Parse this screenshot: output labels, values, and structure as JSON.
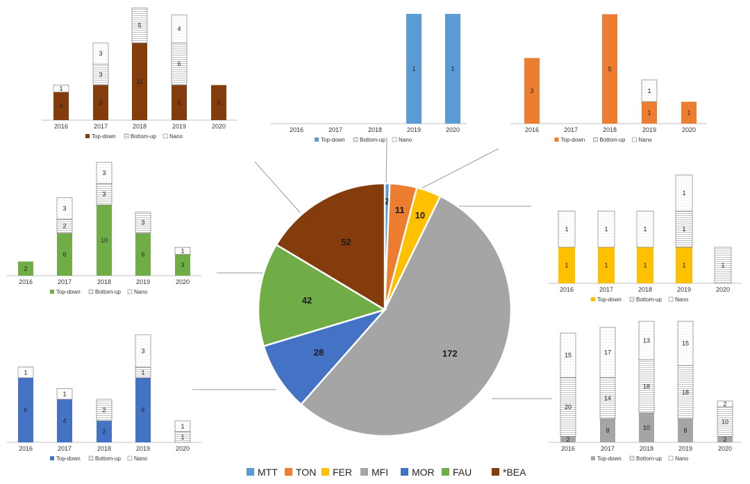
{
  "chart_data": [
    {
      "type": "pie",
      "categories": [
        "MTT",
        "TON",
        "FER",
        "MFI",
        "MOR",
        "FAU",
        "*BEA"
      ],
      "values": [
        2,
        11,
        10,
        172,
        28,
        42,
        52
      ],
      "colors": [
        "#5b9bd5",
        "#ed7d31",
        "#ffc000",
        "#a5a5a5",
        "#4472c4",
        "#70ad47",
        "#843c0c"
      ]
    },
    {
      "type": "bar",
      "stacked": true,
      "name": "MTT",
      "categories": [
        "2016",
        "2017",
        "2018",
        "2019",
        "2020"
      ],
      "series": [
        {
          "name": "Top-down",
          "values": [
            0,
            0,
            0,
            1,
            1
          ],
          "labels": [
            "",
            "",
            "",
            "1",
            "1"
          ]
        },
        {
          "name": "Bottom-up",
          "values": [
            0,
            0,
            0,
            0,
            0
          ],
          "labels": [
            "",
            "",
            "",
            "",
            ""
          ]
        },
        {
          "name": "Nano",
          "values": [
            0,
            0,
            0,
            0,
            0
          ],
          "labels": [
            "",
            "",
            "",
            "",
            ""
          ]
        }
      ],
      "color": "#5b9bd5"
    },
    {
      "type": "bar",
      "stacked": true,
      "name": "TON",
      "categories": [
        "2016",
        "2017",
        "2018",
        "2019",
        "2020"
      ],
      "series": [
        {
          "name": "Top-down",
          "values": [
            3,
            0,
            5,
            1,
            1
          ],
          "labels": [
            "3",
            "",
            "5",
            "1",
            "1"
          ]
        },
        {
          "name": "Bottom-up",
          "values": [
            0,
            0,
            0,
            0,
            0
          ],
          "labels": [
            "",
            "",
            "",
            "",
            ""
          ]
        },
        {
          "name": "Nano",
          "values": [
            0,
            0,
            0,
            1,
            0
          ],
          "labels": [
            "",
            "",
            "",
            "1",
            ""
          ]
        }
      ],
      "color": "#ed7d31"
    },
    {
      "type": "bar",
      "stacked": true,
      "name": "FER",
      "categories": [
        "2016",
        "2017",
        "2018",
        "2019",
        "2020"
      ],
      "series": [
        {
          "name": "Top-down",
          "values": [
            1,
            1,
            1,
            1,
            0
          ],
          "labels": [
            "1",
            "1",
            "1",
            "1",
            ""
          ]
        },
        {
          "name": "Bottom-up",
          "values": [
            0,
            0,
            0,
            1,
            1
          ],
          "labels": [
            "",
            "",
            "",
            "1",
            "1"
          ]
        },
        {
          "name": "Nano",
          "values": [
            1,
            1,
            1,
            1,
            0
          ],
          "labels": [
            "1",
            "1",
            "1",
            "1",
            ""
          ]
        }
      ],
      "color": "#ffc000"
    },
    {
      "type": "bar",
      "stacked": true,
      "name": "MFI",
      "categories": [
        "2016",
        "2017",
        "2018",
        "2019",
        "2020"
      ],
      "series": [
        {
          "name": "Top-down",
          "values": [
            2,
            8,
            10,
            8,
            2
          ],
          "labels": [
            "2",
            "8",
            "10",
            "8",
            "2"
          ]
        },
        {
          "name": "Bottom-up",
          "values": [
            20,
            14,
            18,
            18,
            10
          ],
          "labels": [
            "20",
            "14",
            "18",
            "18",
            "10"
          ]
        },
        {
          "name": "Nano",
          "values": [
            15,
            17,
            13,
            15,
            2
          ],
          "labels": [
            "15",
            "17",
            "13",
            "15",
            "2"
          ]
        }
      ],
      "color": "#a5a5a5"
    },
    {
      "type": "bar",
      "stacked": true,
      "name": "MOR",
      "categories": [
        "2016",
        "2017",
        "2018",
        "2019",
        "2020"
      ],
      "series": [
        {
          "name": "Top-down",
          "values": [
            6,
            4,
            2,
            6,
            0
          ],
          "labels": [
            "6",
            "4",
            "2",
            "6",
            ""
          ]
        },
        {
          "name": "Bottom-up",
          "values": [
            0,
            0,
            2,
            1,
            1
          ],
          "labels": [
            "",
            "",
            "2",
            "1",
            "1"
          ]
        },
        {
          "name": "Nano",
          "values": [
            1,
            1,
            0,
            3,
            1
          ],
          "labels": [
            "1",
            "1",
            "",
            "3",
            "1"
          ]
        }
      ],
      "color": "#4472c4"
    },
    {
      "type": "bar",
      "stacked": true,
      "name": "FAU",
      "categories": [
        "2016",
        "2017",
        "2018",
        "2019",
        "2020"
      ],
      "series": [
        {
          "name": "Top-down",
          "values": [
            2,
            6,
            10,
            6,
            3
          ],
          "labels": [
            "2",
            "6",
            "10",
            "6",
            "3"
          ]
        },
        {
          "name": "Bottom-up",
          "values": [
            0,
            2,
            3,
            3,
            0
          ],
          "labels": [
            "",
            "2",
            "3",
            "3",
            ""
          ]
        },
        {
          "name": "Nano",
          "values": [
            0,
            3,
            3,
            0,
            1
          ],
          "labels": [
            "",
            "3",
            "3",
            "",
            "1"
          ]
        }
      ],
      "color": "#70ad47"
    },
    {
      "type": "bar",
      "stacked": true,
      "name": "*BEA",
      "categories": [
        "2016",
        "2017",
        "2018",
        "2019",
        "2020"
      ],
      "series": [
        {
          "name": "Top-down",
          "values": [
            4,
            5,
            11,
            5,
            5
          ],
          "labels": [
            "4",
            "5",
            "11",
            "5",
            "5"
          ]
        },
        {
          "name": "Bottom-up",
          "values": [
            0,
            3,
            5,
            6,
            0
          ],
          "labels": [
            "",
            "3",
            "5",
            "6",
            ""
          ]
        },
        {
          "name": "Nano",
          "values": [
            1,
            3,
            0,
            4,
            0
          ],
          "labels": [
            "1",
            "3",
            "",
            "4",
            ""
          ]
        }
      ],
      "color": "#843c0c"
    }
  ],
  "legend_series": [
    "Top-down",
    "Bottom-up",
    "Nano"
  ]
}
